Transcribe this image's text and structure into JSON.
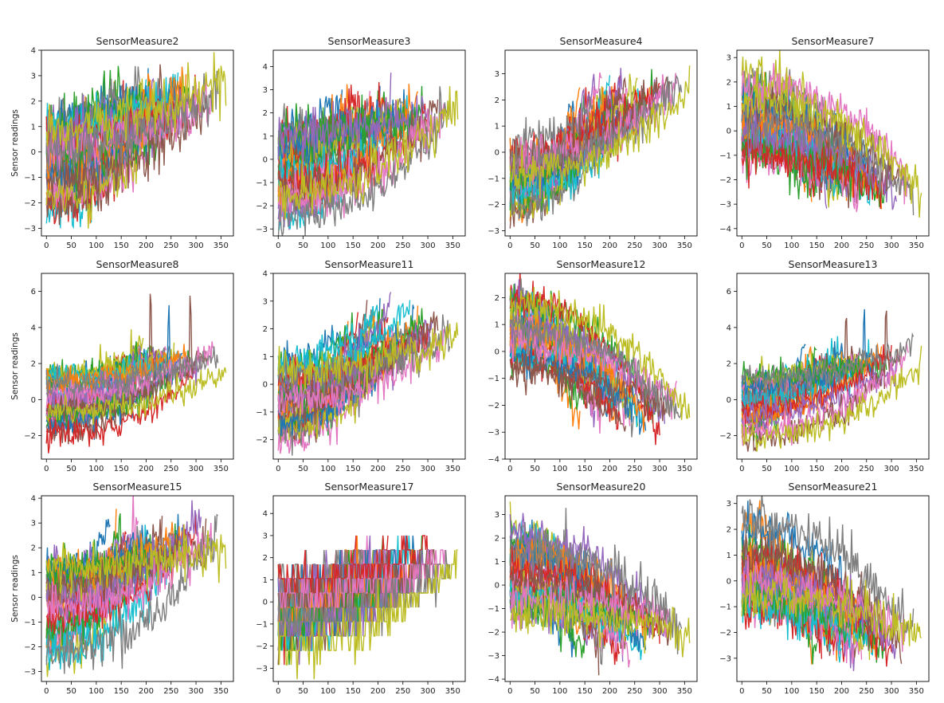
{
  "figure": {
    "ylabel_text": "Sensor readings"
  },
  "chart_data": [
    {
      "type": "line",
      "title": "SensorMeasure2",
      "ylabel": "Sensor readings",
      "xlim": [
        -10,
        375
      ],
      "ylim": [
        -3.3,
        4.0
      ],
      "xticks": [
        0,
        50,
        100,
        150,
        200,
        250,
        300,
        350
      ],
      "yticks": [
        -3,
        -2,
        -1,
        0,
        1,
        2,
        3,
        4
      ],
      "trend": "increasing",
      "start_range": [
        -2.5,
        1.5
      ],
      "end_level": 2.2,
      "noise": 0.9,
      "spikes": 0
    },
    {
      "type": "line",
      "title": "SensorMeasure3",
      "ylabel": "",
      "xlim": [
        -10,
        375
      ],
      "ylim": [
        -3.3,
        4.7
      ],
      "xticks": [
        0,
        50,
        100,
        150,
        200,
        250,
        300,
        350
      ],
      "yticks": [
        -3,
        -2,
        -1,
        0,
        1,
        2,
        3,
        4
      ],
      "trend": "increasing",
      "start_range": [
        -2.6,
        1.4
      ],
      "end_level": 2.2,
      "noise": 0.9,
      "spikes": 0
    },
    {
      "type": "line",
      "title": "SensorMeasure4",
      "ylabel": "",
      "xlim": [
        -10,
        375
      ],
      "ylim": [
        -3.2,
        3.9
      ],
      "xticks": [
        0,
        50,
        100,
        150,
        200,
        250,
        300,
        350
      ],
      "yticks": [
        -3,
        -2,
        -1,
        0,
        1,
        2,
        3
      ],
      "trend": "increasing",
      "start_range": [
        -2.2,
        1.0
      ],
      "end_level": 2.3,
      "noise": 0.7,
      "spikes": 0
    },
    {
      "type": "line",
      "title": "SensorMeasure7",
      "ylabel": "",
      "xlim": [
        -10,
        375
      ],
      "ylim": [
        -4.3,
        3.3
      ],
      "xticks": [
        0,
        50,
        100,
        150,
        200,
        250,
        300,
        350
      ],
      "yticks": [
        -4,
        -3,
        -2,
        -1,
        0,
        1,
        2,
        3
      ],
      "trend": "decreasing",
      "start_range": [
        -1.2,
        2.4
      ],
      "end_level": -2.3,
      "noise": 0.8,
      "spikes": 0
    },
    {
      "type": "line",
      "title": "SensorMeasure8",
      "ylabel": "Sensor readings",
      "xlim": [
        -10,
        375
      ],
      "ylim": [
        -3.3,
        7.0
      ],
      "xticks": [
        0,
        50,
        100,
        150,
        200,
        250,
        300,
        350
      ],
      "yticks": [
        -2,
        0,
        2,
        4,
        6
      ],
      "trend": "increasing",
      "start_range": [
        -2.2,
        1.4
      ],
      "end_level": 2.4,
      "noise": 0.7,
      "spikes": 3
    },
    {
      "type": "line",
      "title": "SensorMeasure11",
      "ylabel": "",
      "xlim": [
        -10,
        375
      ],
      "ylim": [
        -2.7,
        4.0
      ],
      "xticks": [
        0,
        50,
        100,
        150,
        200,
        250,
        300,
        350
      ],
      "yticks": [
        -2,
        -1,
        0,
        1,
        2,
        3,
        4
      ],
      "trend": "increasing",
      "start_range": [
        -2.0,
        0.8
      ],
      "end_level": 2.2,
      "noise": 0.6,
      "spikes": 0
    },
    {
      "type": "line",
      "title": "SensorMeasure12",
      "ylabel": "",
      "xlim": [
        -10,
        375
      ],
      "ylim": [
        -4.0,
        2.9
      ],
      "xticks": [
        0,
        50,
        100,
        150,
        200,
        250,
        300,
        350
      ],
      "yticks": [
        -4,
        -3,
        -2,
        -1,
        0,
        1,
        2
      ],
      "trend": "decreasing",
      "start_range": [
        -0.8,
        2.2
      ],
      "end_level": -2.4,
      "noise": 0.6,
      "spikes": 0
    },
    {
      "type": "line",
      "title": "SensorMeasure13",
      "ylabel": "",
      "xlim": [
        -10,
        375
      ],
      "ylim": [
        -3.3,
        7.0
      ],
      "xticks": [
        0,
        50,
        100,
        150,
        200,
        250,
        300,
        350
      ],
      "yticks": [
        -2,
        0,
        2,
        4,
        6
      ],
      "trend": "increasing",
      "start_range": [
        -2.2,
        1.4
      ],
      "end_level": 2.4,
      "noise": 0.7,
      "spikes": 3
    },
    {
      "type": "line",
      "title": "SensorMeasure15",
      "ylabel": "Sensor readings",
      "xlim": [
        -10,
        375
      ],
      "ylim": [
        -3.4,
        4.1
      ],
      "xticks": [
        0,
        50,
        100,
        150,
        200,
        250,
        300,
        350
      ],
      "yticks": [
        -3,
        -2,
        -1,
        0,
        1,
        2,
        3,
        4
      ],
      "trend": "increasing",
      "start_range": [
        -2.4,
        1.2
      ],
      "end_level": 2.3,
      "noise": 0.8,
      "spikes": 0
    },
    {
      "type": "line",
      "title": "SensorMeasure17",
      "ylabel": "",
      "xlim": [
        -10,
        375
      ],
      "ylim": [
        -3.6,
        4.8
      ],
      "xticks": [
        0,
        50,
        100,
        150,
        200,
        250,
        300,
        350
      ],
      "yticks": [
        -3,
        -2,
        -1,
        0,
        1,
        2,
        3,
        4
      ],
      "trend": "increasing",
      "start_range": [
        -2.0,
        1.2
      ],
      "end_level": 2.0,
      "noise": 0.9,
      "spikes": 0,
      "quantized": true
    },
    {
      "type": "line",
      "title": "SensorMeasure20",
      "ylabel": "",
      "xlim": [
        -10,
        375
      ],
      "ylim": [
        -4.1,
        3.8
      ],
      "xticks": [
        0,
        50,
        100,
        150,
        200,
        250,
        300,
        350
      ],
      "yticks": [
        -4,
        -3,
        -2,
        -1,
        0,
        1,
        2,
        3
      ],
      "trend": "decreasing",
      "start_range": [
        -1.2,
        2.4
      ],
      "end_level": -2.3,
      "noise": 0.8,
      "spikes": 0
    },
    {
      "type": "line",
      "title": "SensorMeasure21",
      "ylabel": "",
      "xlim": [
        -10,
        375
      ],
      "ylim": [
        -3.9,
        3.3
      ],
      "xticks": [
        0,
        50,
        100,
        150,
        200,
        250,
        300,
        350
      ],
      "yticks": [
        -3,
        -2,
        -1,
        0,
        1,
        2,
        3
      ],
      "trend": "decreasing",
      "start_range": [
        -1.2,
        2.4
      ],
      "end_level": -2.3,
      "noise": 0.8,
      "spikes": 0
    }
  ],
  "series_colors": [
    "#1f77b4",
    "#ff7f0e",
    "#2ca02c",
    "#d62728",
    "#9467bd",
    "#8c564b",
    "#e377c2",
    "#7f7f7f",
    "#bcbd22",
    "#17becf"
  ],
  "series_lengths": [
    128,
    140,
    150,
    160,
    170,
    178,
    185,
    190,
    195,
    200,
    205,
    210,
    215,
    220,
    226,
    232,
    240,
    248,
    256,
    264,
    272,
    280,
    290,
    300,
    310,
    320,
    335,
    345,
    360
  ]
}
